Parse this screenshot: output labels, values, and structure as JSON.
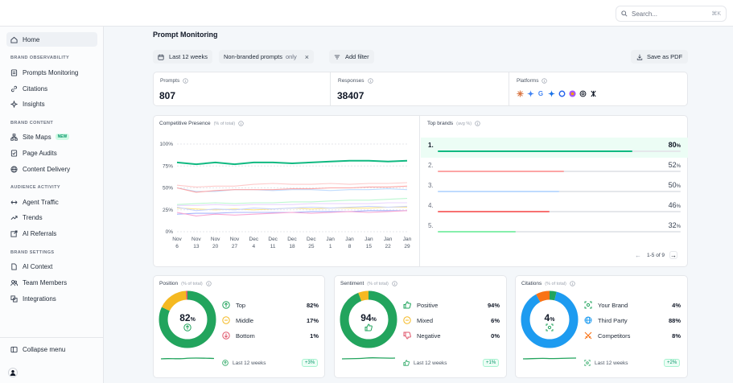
{
  "search": {
    "placeholder": "Search...",
    "shortcut": "⌘K"
  },
  "sidebar": {
    "home": "Home",
    "sections": {
      "brand_observability": "BRAND OBSERVABILITY",
      "brand_content": "BRAND CONTENT",
      "audience_activity": "AUDIENCE ACTIVITY",
      "brand_settings": "BRAND SETTINGS"
    },
    "items": {
      "prompts_monitoring": "Prompts Monitoring",
      "citations": "Citations",
      "insights": "Insights",
      "site_maps": "Site Maps",
      "site_maps_badge": "NEW",
      "page_audits": "Page Audits",
      "content_delivery": "Content Delivery",
      "agent_traffic": "Agent Traffic",
      "trends": "Trends",
      "ai_referrals": "AI Referrals",
      "ai_context": "AI Context",
      "team_members": "Team Members",
      "integrations": "Integrations"
    },
    "collapse": "Collapse menu"
  },
  "page": {
    "title": "Prompt Monitoring",
    "filters": {
      "date": "Last 12 weeks",
      "prompt_filter": "Non-branded prompts",
      "prompt_filter_suffix": "only",
      "add_filter": "Add filter"
    },
    "save_pdf": "Save as PDF"
  },
  "stats": {
    "prompts_label": "Prompts",
    "prompts_value": "807",
    "responses_label": "Responses",
    "responses_value": "38407",
    "platforms_label": "Platforms"
  },
  "competitive": {
    "title": "Competitive Presence",
    "subtitle": "(% of total)"
  },
  "top_brands": {
    "title": "Top brands",
    "subtitle": "(avg %)",
    "rows": [
      {
        "rank": "1.",
        "value": "80",
        "unit": "%",
        "fraction": 0.8,
        "color": "#10b981"
      },
      {
        "rank": "2.",
        "value": "52",
        "unit": "%",
        "fraction": 0.52,
        "color": "#fca5a5"
      },
      {
        "rank": "3.",
        "value": "50",
        "unit": "%",
        "fraction": 0.5,
        "color": "#bfdbfe"
      },
      {
        "rank": "4.",
        "value": "46",
        "unit": "%",
        "fraction": 0.46,
        "color": "#f87171"
      },
      {
        "rank": "5.",
        "value": "32",
        "unit": "%",
        "fraction": 0.32,
        "color": "#86efac"
      }
    ],
    "pager": "1-5 of 9"
  },
  "position": {
    "title": "Position",
    "subtitle": "(% of total)",
    "center_value": "82",
    "center_unit": "%",
    "items": [
      {
        "label": "Top",
        "value": "82%",
        "color": "#22a45d"
      },
      {
        "label": "Middle",
        "value": "17%",
        "color": "#f5b921"
      },
      {
        "label": "Bottom",
        "value": "1%",
        "color": "#e0566b"
      }
    ],
    "footer": "Last 12 weeks",
    "delta": "+3%"
  },
  "sentiment": {
    "title": "Sentiment",
    "subtitle": "(% of total)",
    "center_value": "94",
    "center_unit": "%",
    "items": [
      {
        "label": "Positive",
        "value": "94%",
        "color": "#22a45d"
      },
      {
        "label": "Mixed",
        "value": "6%",
        "color": "#f5b921"
      },
      {
        "label": "Negative",
        "value": "0%",
        "color": "#e0566b"
      }
    ],
    "footer": "Last 12 weeks",
    "delta": "+1%"
  },
  "citations": {
    "title": "Citations",
    "subtitle": "(% of total)",
    "center_value": "4",
    "center_unit": "%",
    "items": [
      {
        "label": "Your Brand",
        "value": "4%",
        "color": "#22a45d"
      },
      {
        "label": "Third Party",
        "value": "88%",
        "color": "#1d9bf0"
      },
      {
        "label": "Competitors",
        "value": "8%",
        "color": "#f97316"
      }
    ],
    "footer": "Last 12 weeks",
    "delta": "+2%"
  },
  "chart_data": {
    "type": "line",
    "title": "Competitive Presence",
    "x": [
      "Nov 6",
      "Nov 13",
      "Nov 20",
      "Nov 27",
      "Dec 4",
      "Dec 11",
      "Dec 18",
      "Dec 25",
      "Jan 1",
      "Jan 8",
      "Jan 15",
      "Jan 22",
      "Jan 29"
    ],
    "ylim": [
      0,
      100
    ],
    "yticks": [
      "100%",
      "75%",
      "50%",
      "25%",
      "0%"
    ],
    "series": [
      {
        "color": "#10b981",
        "values": [
          79,
          77,
          79,
          77,
          79,
          79,
          78,
          79,
          80,
          81,
          81,
          80,
          81
        ]
      },
      {
        "color": "#fecaca",
        "values": [
          53,
          51,
          52,
          52,
          54,
          55,
          54,
          54,
          55,
          54,
          55,
          55,
          56
        ]
      },
      {
        "color": "#fca5a5",
        "values": [
          50,
          45,
          47,
          48,
          48,
          48,
          49,
          49,
          50,
          50,
          51,
          51,
          52
        ]
      },
      {
        "color": "#bfdbfe",
        "values": [
          50,
          46,
          46,
          48,
          48,
          47,
          48,
          48,
          47,
          48,
          48,
          49,
          48
        ]
      },
      {
        "color": "#bbf7d0",
        "values": [
          31,
          32,
          33,
          32,
          33,
          33,
          34,
          34,
          35,
          36,
          36,
          37,
          38
        ]
      },
      {
        "color": "#e9d5ff",
        "values": [
          30,
          30,
          31,
          30,
          31,
          31,
          31,
          32,
          32,
          32,
          32,
          33,
          33
        ]
      },
      {
        "color": "#c7d2fe",
        "values": [
          28,
          24,
          26,
          25,
          27,
          26,
          27,
          28,
          27,
          28,
          29,
          28,
          29
        ]
      },
      {
        "color": "#fde68a",
        "values": [
          27,
          26,
          25,
          26,
          25,
          26,
          27,
          26,
          27,
          27,
          27,
          28,
          28
        ]
      },
      {
        "color": "#f9a8d4",
        "values": [
          22,
          18,
          20,
          19,
          20,
          21,
          22,
          21,
          22,
          23,
          22,
          23,
          24
        ]
      },
      {
        "color": "#a5b4fc",
        "values": [
          20,
          21,
          21,
          22,
          22,
          22,
          22,
          23,
          23,
          23,
          24,
          24,
          24
        ]
      }
    ],
    "grid": true
  }
}
